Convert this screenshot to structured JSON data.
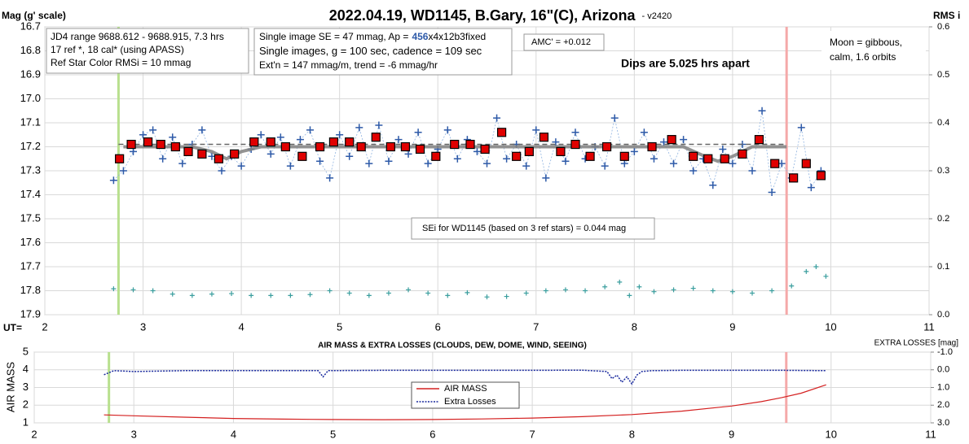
{
  "chart_data": [
    {
      "type": "scatter",
      "title": "2022.04.19, WD1145, B.Gary, 16\"(C), Arizona",
      "subtitle": "- v2420",
      "y_label": "Mag (g' scale)",
      "y2_label": "RMS i",
      "x_label": "UT=",
      "xlim": [
        2,
        11
      ],
      "xticks": [
        2,
        3,
        4,
        5,
        6,
        7,
        8,
        9,
        10,
        11
      ],
      "ylim": [
        17.9,
        16.7
      ],
      "yticks": [
        16.7,
        16.8,
        16.9,
        {
          "value": 17,
          "label": "17.0"
        },
        17.1,
        17.2,
        17.3,
        17.4,
        17.5,
        17.6,
        17.7,
        17.8,
        17.9
      ],
      "y2lim": [
        0,
        0.6
      ],
      "y2ticks": [
        {
          "value": 0,
          "label": "0.0"
        },
        0.1,
        0.2,
        0.3,
        0.4,
        0.5,
        0.6
      ],
      "grid": true,
      "reference_level": 17.19,
      "markers": [
        {
          "x": 2.75,
          "color": "#b8e08e"
        },
        {
          "x": 9.55,
          "color": "#f5a9a9"
        }
      ],
      "notes": [
        "JD4 range 9688.612 - 9688.915, 7.3 hrs",
        "17 ref *, 18 cal* (using APASS)",
        "Ref Star Color RMSi = 10 mmag"
      ],
      "setup": [
        [
          "Single image SE = 47 mmag, Ap =",
          "456",
          "x4x12b3fixed"
        ],
        [
          "Single images, g = 100 sec, cadence = 109 sec"
        ],
        [
          "Ext'n = 147 mmag/m, trend = -6 mmag/hr"
        ]
      ],
      "amc": "AMC' = +0.012",
      "dips": "Dips are 5.025 hrs apart",
      "moon": [
        "Moon = gibbous,",
        "calm,  1.6 orbits"
      ],
      "sei": "SEi for WD1145 (based on 3 ref stars) = 0.044 mag",
      "series": [
        {
          "style": "cross",
          "axis": "y2",
          "color": "#3a9e9e",
          "x": [
            2.7,
            2.9,
            3.1,
            3.3,
            3.5,
            3.7,
            3.9,
            4.1,
            4.3,
            4.5,
            4.7,
            4.9,
            5.1,
            5.3,
            5.5,
            5.7,
            5.9,
            6.1,
            6.3,
            6.5,
            6.7,
            6.9,
            7.1,
            7.3,
            7.5,
            7.7,
            7.85,
            7.95,
            8.05,
            8.2,
            8.4,
            8.6,
            8.8,
            9.0,
            9.2,
            9.4,
            9.6,
            9.75,
            9.85,
            9.95
          ],
          "values": [
            0.054,
            0.052,
            0.05,
            0.043,
            0.04,
            0.043,
            0.044,
            0.04,
            0.04,
            0.04,
            0.042,
            0.05,
            0.045,
            0.04,
            0.045,
            0.052,
            0.045,
            0.04,
            0.046,
            0.037,
            0.038,
            0.045,
            0.05,
            0.052,
            0.05,
            0.058,
            0.068,
            0.04,
            0.058,
            0.048,
            0.052,
            0.055,
            0.05,
            0.048,
            0.045,
            0.05,
            0.06,
            0.09,
            0.1,
            0.08
          ]
        },
        {
          "style": "cross-dotted",
          "color": "#2e5aa8",
          "x": [
            2.7,
            2.8,
            2.9,
            3.0,
            3.1,
            3.2,
            3.3,
            3.4,
            3.5,
            3.6,
            3.7,
            3.8,
            3.9,
            4.0,
            4.1,
            4.2,
            4.3,
            4.4,
            4.5,
            4.6,
            4.7,
            4.8,
            4.9,
            5.0,
            5.1,
            5.2,
            5.3,
            5.4,
            5.5,
            5.6,
            5.7,
            5.8,
            5.9,
            6.0,
            6.1,
            6.2,
            6.3,
            6.4,
            6.5,
            6.6,
            6.7,
            6.8,
            6.9,
            7.0,
            7.1,
            7.2,
            7.3,
            7.4,
            7.5,
            7.6,
            7.7,
            7.8,
            7.9,
            8.0,
            8.1,
            8.2,
            8.3,
            8.4,
            8.5,
            8.6,
            8.7,
            8.8,
            8.9,
            9.0,
            9.1,
            9.2,
            9.3,
            9.4,
            9.5,
            9.6,
            9.7,
            9.8,
            9.9
          ],
          "values": [
            17.34,
            17.3,
            17.22,
            17.15,
            17.13,
            17.25,
            17.16,
            17.27,
            17.19,
            17.13,
            17.24,
            17.3,
            17.24,
            17.28,
            17.21,
            17.15,
            17.23,
            17.16,
            17.28,
            17.17,
            17.13,
            17.26,
            17.33,
            17.15,
            17.24,
            17.12,
            17.27,
            17.11,
            17.26,
            17.17,
            17.23,
            17.14,
            17.27,
            17.21,
            17.13,
            17.25,
            17.17,
            17.22,
            17.27,
            17.08,
            17.25,
            17.19,
            17.28,
            17.13,
            17.33,
            17.18,
            17.26,
            17.14,
            17.25,
            17.2,
            17.28,
            17.08,
            17.27,
            17.22,
            17.14,
            17.25,
            17.18,
            17.27,
            17.17,
            17.3,
            17.25,
            17.36,
            17.21,
            17.27,
            17.19,
            17.3,
            17.05,
            17.39,
            17.27,
            17.33,
            17.12,
            17.37,
            17.3
          ]
        },
        {
          "style": "line",
          "color": "#808080",
          "x": [
            2.8,
            3.5,
            3.7,
            3.85,
            4.0,
            4.2,
            8.5,
            8.72,
            8.85,
            9.0,
            9.2,
            9.55
          ],
          "values": [
            17.2,
            17.2,
            17.22,
            17.25,
            17.22,
            17.2,
            17.2,
            17.24,
            17.26,
            17.24,
            17.2,
            17.2
          ]
        },
        {
          "style": "square",
          "color": "#e00000",
          "x": [
            2.76,
            2.88,
            3.05,
            3.18,
            3.33,
            3.46,
            3.6,
            3.77,
            3.93,
            4.13,
            4.3,
            4.45,
            4.62,
            4.8,
            4.94,
            5.1,
            5.22,
            5.37,
            5.52,
            5.67,
            5.82,
            5.98,
            6.17,
            6.33,
            6.48,
            6.65,
            6.8,
            6.93,
            7.08,
            7.25,
            7.4,
            7.55,
            7.72,
            7.9,
            8.18,
            8.38,
            8.6,
            8.75,
            8.92,
            9.1,
            9.27,
            9.43,
            9.62,
            9.75,
            9.9
          ],
          "values": [
            17.25,
            17.19,
            17.18,
            17.19,
            17.2,
            17.22,
            17.23,
            17.25,
            17.23,
            17.18,
            17.18,
            17.2,
            17.24,
            17.2,
            17.18,
            17.18,
            17.2,
            17.16,
            17.2,
            17.2,
            17.21,
            17.24,
            17.19,
            17.19,
            17.21,
            17.14,
            17.24,
            17.22,
            17.16,
            17.22,
            17.19,
            17.24,
            17.2,
            17.24,
            17.2,
            17.17,
            17.24,
            17.25,
            17.25,
            17.23,
            17.17,
            17.27,
            17.33,
            17.27,
            17.32
          ]
        }
      ]
    },
    {
      "type": "line",
      "title": "AIR MASS & EXTRA LOSSES (CLOUDS, DEW, DOME, WIND, SEEING)",
      "y_label": "AIR MASS",
      "y2_label": "EXTRA LOSSES [mag]",
      "xlim": [
        2,
        11
      ],
      "xticks": [
        2,
        3,
        4,
        5,
        6,
        7,
        8,
        9,
        10,
        11
      ],
      "ylim": [
        1,
        5
      ],
      "yticks": [
        1,
        2,
        3,
        4,
        5
      ],
      "y2lim": [
        3,
        -1
      ],
      "y2ticks": [
        {
          "value": -1,
          "label": "-1.0"
        },
        {
          "value": 0,
          "label": "0.0"
        },
        {
          "value": 1,
          "label": "1.0"
        },
        {
          "value": 2,
          "label": "2.0"
        },
        {
          "value": 3,
          "label": "3.0"
        }
      ],
      "grid": true,
      "markers": [
        {
          "x": 2.75,
          "color": "#b8e08e"
        },
        {
          "x": 9.55,
          "color": "#f5a9a9"
        }
      ],
      "series": [
        {
          "name": "AIR MASS",
          "style": "line",
          "color": "#d42020",
          "x": [
            2.7,
            3.0,
            3.5,
            4.0,
            4.5,
            5.0,
            5.5,
            6.0,
            6.5,
            7.0,
            7.5,
            8.0,
            8.5,
            9.0,
            9.3,
            9.5,
            9.7,
            9.95
          ],
          "values": [
            1.45,
            1.4,
            1.32,
            1.25,
            1.21,
            1.19,
            1.18,
            1.19,
            1.22,
            1.27,
            1.35,
            1.47,
            1.66,
            1.95,
            2.2,
            2.42,
            2.68,
            3.15
          ]
        },
        {
          "name": "Extra Losses",
          "style": "dotted-line",
          "axis": "y2",
          "color": "#1a2a9e",
          "x": [
            2.7,
            2.8,
            3.0,
            3.5,
            4.0,
            4.5,
            4.85,
            4.9,
            4.95,
            5.5,
            6.0,
            6.5,
            7.0,
            7.5,
            7.75,
            7.8,
            7.85,
            7.9,
            7.95,
            8.0,
            8.05,
            8.1,
            8.2,
            8.5,
            9.0,
            9.5,
            9.95
          ],
          "values": [
            0.28,
            0.05,
            0.1,
            0.05,
            0.05,
            0.05,
            0.05,
            0.4,
            0.05,
            0.03,
            0.03,
            0.03,
            0.03,
            0.02,
            0.1,
            0.5,
            0.3,
            0.7,
            0.4,
            0.8,
            0.3,
            0.1,
            0.05,
            0.03,
            0.03,
            0.03,
            0.05
          ]
        }
      ]
    }
  ]
}
